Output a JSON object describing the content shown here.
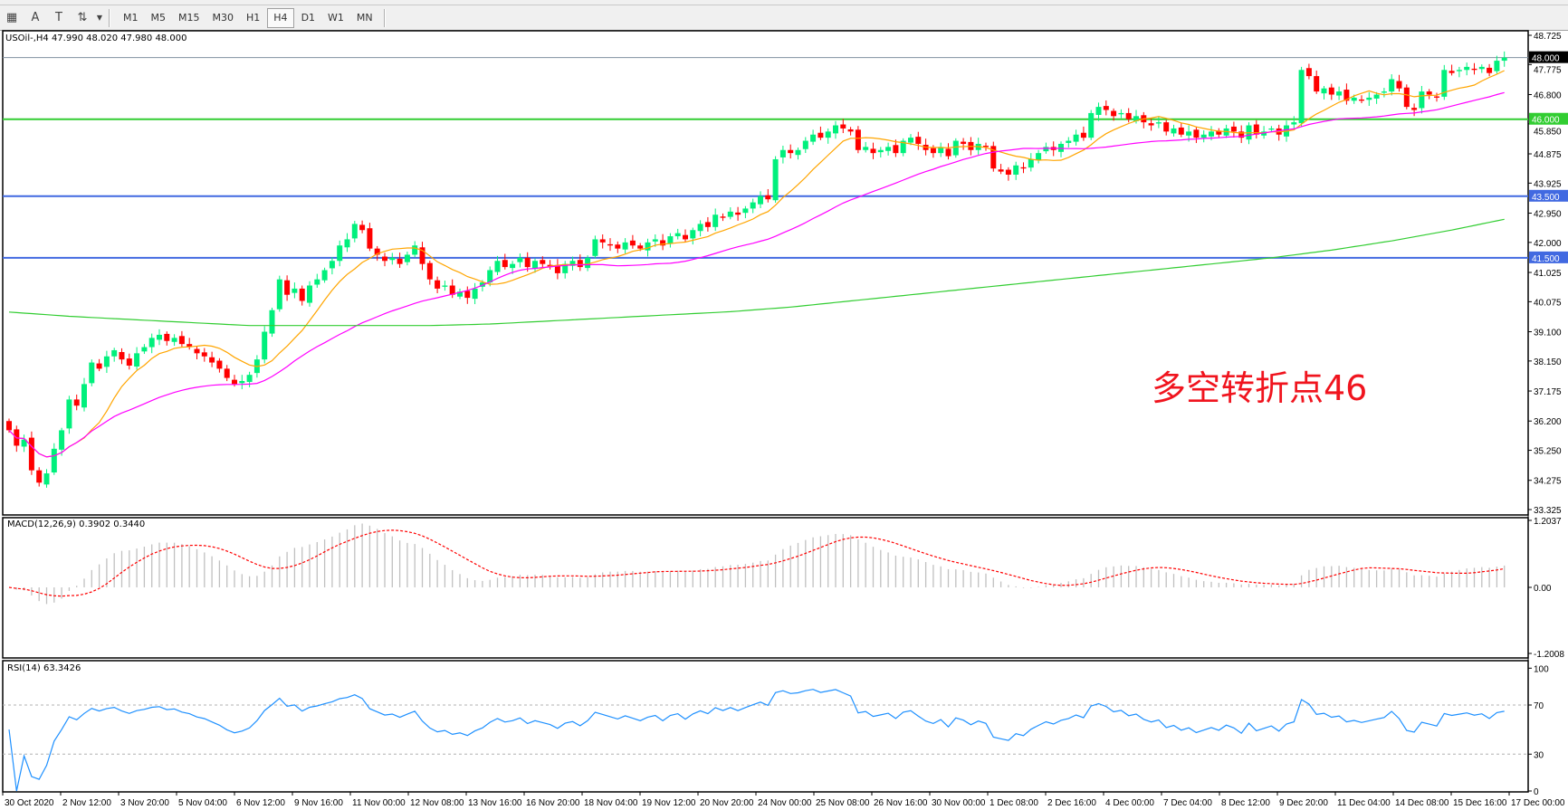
{
  "toolbar": {
    "icons": [
      "grid-f-icon",
      "text-a-icon",
      "text-label-icon",
      "arrows-icon",
      "dropdown-icon"
    ],
    "timeframes": [
      "M1",
      "M5",
      "M15",
      "M30",
      "H1",
      "H4",
      "D1",
      "W1",
      "MN"
    ],
    "active_timeframe": "H4"
  },
  "chart_header": {
    "symbol_line": "USOil-,H4  47.990 48.020 47.980 48.000"
  },
  "annotation": "多空转折点46",
  "colors": {
    "bull": "#00f07c",
    "bear": "#ff0000",
    "ma_fast": "#ffa500",
    "ma_mid": "#ff00ff",
    "ma_long": "#32cd32",
    "level_green": "#32cd32",
    "level_blue": "#4169e1",
    "macd_hist": "#c0c0c0",
    "macd_signal": "#ff0000",
    "rsi": "#1e90ff"
  },
  "chart_data": {
    "type": "candlestick",
    "symbol": "USOil-",
    "timeframe": "H4",
    "ylim": [
      33.325,
      48.725
    ],
    "price_ticks": [
      "48.725",
      "47.775",
      "46.800",
      "45.850",
      "44.875",
      "43.925",
      "42.950",
      "42.000",
      "41.025",
      "40.075",
      "39.100",
      "38.150",
      "37.175",
      "36.200",
      "35.250",
      "34.275",
      "33.325"
    ],
    "x_ticks": [
      "30 Oct 2020",
      "2 Nov 12:00",
      "3 Nov 20:00",
      "5 Nov 04:00",
      "6 Nov 12:00",
      "9 Nov 16:00",
      "11 Nov 00:00",
      "12 Nov 08:00",
      "13 Nov 16:00",
      "16 Nov 20:00",
      "18 Nov 04:00",
      "19 Nov 12:00",
      "20 Nov 20:00",
      "24 Nov 00:00",
      "25 Nov 08:00",
      "26 Nov 16:00",
      "30 Nov 00:00",
      "1 Dec 08:00",
      "2 Dec 16:00",
      "4 Dec 00:00",
      "7 Dec 04:00",
      "8 Dec 12:00",
      "9 Dec 20:00",
      "11 Dec 04:00",
      "14 Dec 08:00",
      "15 Dec 16:00",
      "17 Dec 00:00"
    ],
    "levels": [
      {
        "price": 48.0,
        "label": "48.000",
        "kind": "current"
      },
      {
        "price": 46.0,
        "label": "46.000",
        "kind": "green"
      },
      {
        "price": 43.5,
        "label": "43.500",
        "kind": "blue"
      },
      {
        "price": 41.5,
        "label": "41.500",
        "kind": "blue"
      }
    ],
    "closes": [
      35.9,
      35.4,
      35.6,
      34.6,
      34.2,
      34.5,
      35.3,
      35.9,
      36.9,
      36.7,
      37.4,
      38.1,
      37.9,
      38.3,
      38.5,
      38.2,
      38.0,
      38.4,
      38.6,
      38.9,
      39.0,
      38.8,
      38.9,
      38.7,
      38.6,
      38.4,
      38.3,
      38.1,
      37.9,
      37.6,
      37.4,
      37.5,
      37.7,
      38.2,
      39.1,
      39.8,
      40.8,
      40.3,
      40.5,
      40.1,
      40.6,
      40.8,
      41.1,
      41.4,
      41.9,
      42.1,
      42.6,
      42.4,
      41.8,
      41.6,
      41.4,
      41.5,
      41.3,
      41.6,
      41.9,
      41.3,
      40.8,
      40.5,
      40.6,
      40.3,
      40.4,
      40.2,
      40.5,
      40.7,
      41.1,
      41.4,
      41.2,
      41.3,
      41.5,
      41.2,
      41.4,
      41.3,
      41.2,
      41.0,
      41.3,
      41.4,
      41.2,
      41.5,
      42.1,
      42.0,
      41.9,
      41.8,
      42.0,
      41.9,
      41.8,
      42.0,
      42.1,
      41.9,
      42.2,
      42.3,
      42.1,
      42.4,
      42.6,
      42.5,
      42.9,
      42.8,
      43.0,
      42.9,
      43.1,
      43.3,
      43.5,
      43.4,
      44.7,
      45.0,
      44.9,
      45.0,
      45.3,
      45.5,
      45.4,
      45.6,
      45.8,
      45.7,
      45.6,
      45.0,
      45.1,
      44.9,
      45.0,
      45.1,
      44.9,
      45.3,
      45.4,
      45.2,
      45.0,
      44.9,
      45.1,
      44.8,
      45.3,
      45.2,
      45.0,
      45.2,
      45.1,
      44.4,
      44.3,
      44.2,
      44.5,
      44.4,
      44.7,
      44.9,
      45.1,
      45.0,
      45.2,
      45.3,
      45.5,
      45.4,
      46.2,
      46.4,
      46.3,
      46.1,
      46.2,
      46.0,
      46.1,
      45.9,
      45.8,
      45.9,
      45.6,
      45.7,
      45.5,
      45.6,
      45.4,
      45.5,
      45.6,
      45.5,
      45.7,
      45.6,
      45.4,
      45.8,
      45.5,
      45.6,
      45.7,
      45.5,
      45.8,
      45.9,
      47.6,
      47.4,
      46.9,
      47.0,
      46.8,
      46.9,
      46.6,
      46.7,
      46.6,
      46.7,
      46.8,
      46.9,
      47.3,
      47.0,
      46.4,
      46.3,
      46.9,
      46.8,
      46.7,
      47.6,
      47.5,
      47.6,
      47.7,
      47.6,
      47.7,
      47.5,
      47.9,
      48.0
    ],
    "ma_long_at_ticks": [
      39.74,
      39.6,
      39.5,
      39.4,
      39.3,
      39.3,
      39.3,
      39.3,
      39.35,
      39.45,
      39.55,
      39.65,
      39.75,
      39.9,
      40.1,
      40.3,
      40.5,
      40.7,
      40.9,
      41.1,
      41.3,
      41.5,
      41.75,
      42.05,
      42.4,
      42.8,
      43.2
    ],
    "macd": {
      "title": "MACD(12,26,9) 0.3902 0.3440",
      "ylim": [
        -1.2008,
        1.2037
      ],
      "ticks": [
        "1.2037",
        "0.00",
        "-1.2008"
      ]
    },
    "rsi": {
      "title": "RSI(14) 63.3426",
      "ylim": [
        0,
        100
      ],
      "ticks": [
        "100",
        "70",
        "30",
        "0"
      ],
      "levels": [
        70,
        30
      ]
    }
  }
}
